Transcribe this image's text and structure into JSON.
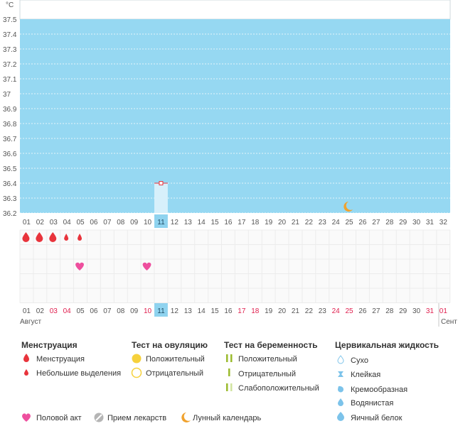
{
  "chart_data": {
    "type": "line",
    "title": "",
    "unit_label": "°C",
    "y_ticks": [
      "36.2",
      "36.3",
      "36.4",
      "36.5",
      "36.6",
      "36.7",
      "36.8",
      "36.9",
      "37",
      "37.1",
      "37.2",
      "37.3",
      "37.4",
      "37.5"
    ],
    "ylim": [
      36.2,
      37.5
    ],
    "x_days_top": [
      "01",
      "02",
      "03",
      "04",
      "05",
      "06",
      "07",
      "08",
      "09",
      "10",
      "11",
      "12",
      "13",
      "14",
      "15",
      "16",
      "17",
      "18",
      "19",
      "20",
      "21",
      "22",
      "23",
      "24",
      "25",
      "26",
      "27",
      "28",
      "29",
      "30",
      "31",
      "32"
    ],
    "x_days_bottom": [
      "01",
      "02",
      "03",
      "04",
      "05",
      "06",
      "07",
      "08",
      "09",
      "10",
      "11",
      "12",
      "13",
      "14",
      "15",
      "16",
      "17",
      "18",
      "19",
      "20",
      "21",
      "22",
      "23",
      "24",
      "25",
      "26",
      "27",
      "28",
      "29",
      "30",
      "31",
      "01"
    ],
    "highlighted_day_bottom": [
      "03",
      "04",
      "10",
      "17",
      "18",
      "24",
      "25",
      "31",
      "01"
    ],
    "current_day": "11",
    "month_labels": {
      "current": "Август",
      "next": "Сент"
    },
    "temperature_points": [
      {
        "day": "11",
        "value": 36.4
      }
    ],
    "menstruation": [
      {
        "day": "01",
        "kind": "heavy"
      },
      {
        "day": "02",
        "kind": "heavy"
      },
      {
        "day": "03",
        "kind": "heavy"
      },
      {
        "day": "04",
        "kind": "light"
      },
      {
        "day": "05",
        "kind": "light"
      }
    ],
    "intercourse_days": [
      "05",
      "10"
    ],
    "moon_day": "25"
  },
  "legend": {
    "menstruation": {
      "title": "Менструация",
      "items": [
        "Менструация",
        "Небольшие выделения"
      ]
    },
    "ovulation": {
      "title": "Тест на овуляцию",
      "items": [
        "Положительный",
        "Отрицательный"
      ]
    },
    "pregnancy": {
      "title": "Тест на беременность",
      "items": [
        "Положительный",
        "Отрицательный",
        "Слабоположительный"
      ]
    },
    "cervical": {
      "title": "Цервикальная жидкость",
      "items": [
        "Сухо",
        "Клейкая",
        "Кремообразная",
        "Водянистая",
        "Яичный белок"
      ]
    },
    "bottom": [
      "Половой акт",
      "Прием лекарств",
      "Лунный календарь"
    ]
  },
  "colors": {
    "chart_bg": "#96d8f2",
    "current_day": "#8fd3ef",
    "current_day_bar": "#d7f0fb",
    "blood": "#e8343c",
    "heart": "#ee4f9e",
    "moon": "#f0a22e",
    "ovulation_yellow": "#f6d13c",
    "pregnancy_green": "#9bbb2e",
    "pregnancy_light": "#d1e4a0",
    "cervical_blue": "#7cc3ea",
    "highlight_red": "#e0204f"
  }
}
